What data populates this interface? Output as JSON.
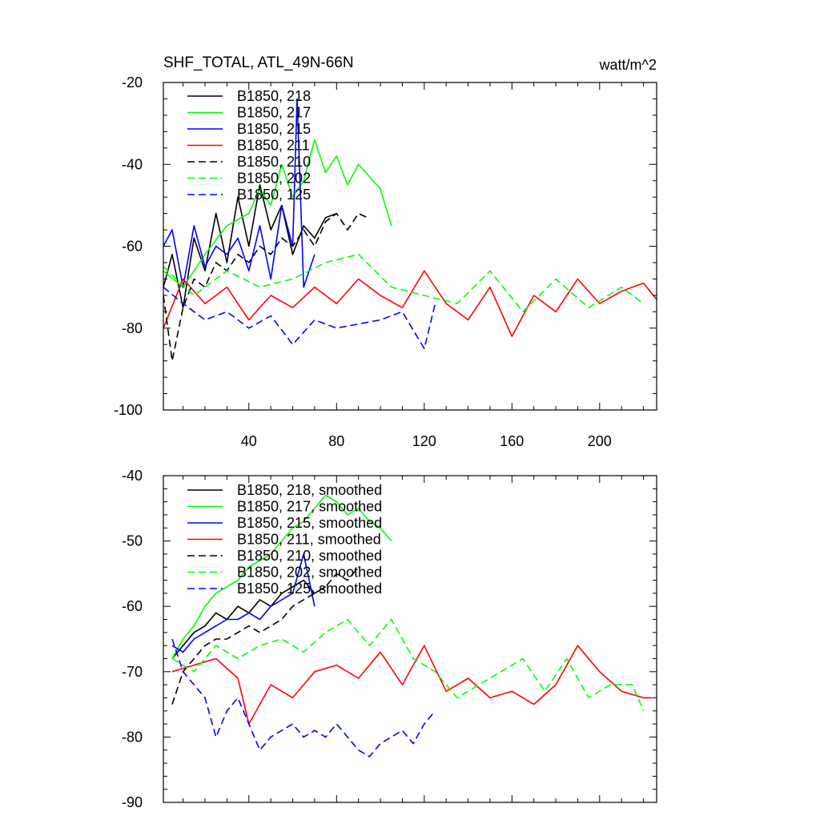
{
  "header": {
    "title": "SHF_TOTAL, ATL_49N-66N",
    "units": "watt/m^2"
  },
  "chart_data": [
    {
      "type": "line",
      "panel": "top",
      "xlim": [
        1,
        226
      ],
      "ylim": [
        -100,
        -20
      ],
      "x_ticks": [
        40,
        80,
        120,
        160,
        200
      ],
      "x_tick_labels": [
        "40",
        "80",
        "120",
        "160",
        "200"
      ],
      "y_ticks": [
        -20,
        -40,
        -60,
        -80,
        -100
      ],
      "y_tick_labels": [
        "-20",
        "-40",
        "-60",
        "-80",
        "-100"
      ],
      "grid": false,
      "legend_position": "top-left",
      "series": [
        {
          "name": "B1850, 218",
          "color": "#000000",
          "dash": "solid",
          "x": [
            1,
            5,
            10,
            15,
            20,
            25,
            30,
            35,
            40,
            45,
            50,
            55,
            60,
            65,
            70,
            75,
            80
          ],
          "y": [
            -70,
            -62,
            -75,
            -58,
            -66,
            -52,
            -64,
            -48,
            -60,
            -45,
            -56,
            -50,
            -62,
            -55,
            -58,
            -53,
            -52
          ]
        },
        {
          "name": "B1850, 217",
          "color": "#00ff00",
          "dash": "solid",
          "x": [
            1,
            10,
            20,
            30,
            40,
            45,
            50,
            55,
            60,
            65,
            70,
            75,
            80,
            85,
            90,
            95,
            100,
            105
          ],
          "y": [
            -66,
            -70,
            -62,
            -55,
            -52,
            -46,
            -50,
            -40,
            -48,
            -44,
            -34,
            -42,
            -38,
            -45,
            -40,
            -43,
            -46,
            -55
          ]
        },
        {
          "name": "B1850, 215",
          "color": "#0000ff",
          "dash": "solid",
          "x": [
            1,
            5,
            10,
            15,
            20,
            25,
            30,
            35,
            40,
            45,
            50,
            55,
            60,
            62,
            65,
            70
          ],
          "y": [
            -60,
            -56,
            -70,
            -55,
            -65,
            -60,
            -62,
            -58,
            -66,
            -55,
            -68,
            -50,
            -60,
            -24,
            -70,
            -62
          ]
        },
        {
          "name": "B1850, 211",
          "color": "#ff0000",
          "dash": "solid",
          "x": [
            1,
            10,
            20,
            30,
            40,
            50,
            60,
            70,
            80,
            90,
            100,
            110,
            120,
            130,
            140,
            150,
            160,
            170,
            180,
            190,
            200,
            210,
            220,
            226
          ],
          "y": [
            -80,
            -68,
            -74,
            -70,
            -78,
            -72,
            -75,
            -70,
            -74,
            -68,
            -72,
            -75,
            -66,
            -74,
            -78,
            -70,
            -82,
            -72,
            -76,
            -68,
            -74,
            -71,
            -69,
            -73
          ]
        },
        {
          "name": "B1850, 210",
          "color": "#000000",
          "dash": "dashed",
          "x": [
            1,
            5,
            10,
            15,
            20,
            25,
            30,
            35,
            40,
            45,
            50,
            55,
            60,
            65,
            70,
            75,
            80,
            85,
            90,
            94
          ],
          "y": [
            -72,
            -88,
            -75,
            -68,
            -70,
            -64,
            -66,
            -62,
            -64,
            -60,
            -62,
            -58,
            -60,
            -56,
            -60,
            -54,
            -52,
            -56,
            -52,
            -53
          ]
        },
        {
          "name": "B1850, 202",
          "color": "#00ff00",
          "dash": "dashed",
          "x": [
            1,
            15,
            30,
            45,
            60,
            75,
            90,
            105,
            120,
            135,
            150,
            165,
            180,
            195,
            210,
            220
          ],
          "y": [
            -65,
            -72,
            -66,
            -70,
            -68,
            -64,
            -62,
            -70,
            -72,
            -74,
            -66,
            -76,
            -68,
            -75,
            -70,
            -74
          ]
        },
        {
          "name": "B1850, 125",
          "color": "#0000ff",
          "dash": "dashed",
          "x": [
            1,
            10,
            20,
            30,
            40,
            50,
            60,
            70,
            80,
            90,
            100,
            110,
            120,
            125
          ],
          "y": [
            -70,
            -74,
            -78,
            -76,
            -80,
            -77,
            -84,
            -78,
            -80,
            -79,
            -78,
            -76,
            -85,
            -74
          ]
        }
      ]
    },
    {
      "type": "line",
      "panel": "bottom",
      "xlim": [
        1,
        226
      ],
      "ylim": [
        -90,
        -40
      ],
      "x_ticks": [
        40,
        80,
        120,
        160,
        200
      ],
      "y_ticks": [
        -40,
        -50,
        -60,
        -70,
        -80,
        -90
      ],
      "y_tick_labels": [
        "-40",
        "-50",
        "-60",
        "-70",
        "-80",
        "-90"
      ],
      "grid": false,
      "legend_position": "top-left",
      "series": [
        {
          "name": "B1850, 218, smoothed",
          "color": "#000000",
          "dash": "solid",
          "x": [
            5,
            10,
            15,
            20,
            25,
            30,
            35,
            40,
            45,
            50,
            55,
            60,
            65,
            70,
            75
          ],
          "y": [
            -68,
            -66,
            -64,
            -63,
            -61,
            -62,
            -60,
            -61,
            -59,
            -60,
            -58,
            -57,
            -56,
            -58,
            -57
          ]
        },
        {
          "name": "B1850, 217, smoothed",
          "color": "#00ff00",
          "dash": "solid",
          "x": [
            5,
            10,
            15,
            20,
            25,
            30,
            35,
            40,
            45,
            50,
            55,
            60,
            65,
            70,
            75,
            80,
            85,
            90,
            95,
            100,
            105
          ],
          "y": [
            -68,
            -65,
            -63,
            -60,
            -58,
            -57,
            -56,
            -54,
            -53,
            -52,
            -50,
            -48,
            -47,
            -45,
            -43,
            -44,
            -46,
            -45,
            -47,
            -48,
            -50
          ]
        },
        {
          "name": "B1850, 215, smoothed",
          "color": "#0000ff",
          "dash": "solid",
          "x": [
            5,
            10,
            15,
            20,
            25,
            30,
            35,
            40,
            45,
            50,
            55,
            60,
            65,
            70
          ],
          "y": [
            -66,
            -67,
            -65,
            -64,
            -63,
            -62,
            -62,
            -61,
            -62,
            -60,
            -59,
            -58,
            -52,
            -60
          ]
        },
        {
          "name": "B1850, 211, smoothed",
          "color": "#ff0000",
          "dash": "solid",
          "x": [
            5,
            15,
            25,
            35,
            40,
            50,
            60,
            70,
            80,
            90,
            100,
            110,
            120,
            130,
            140,
            150,
            160,
            170,
            180,
            190,
            200,
            210,
            220,
            224
          ],
          "y": [
            -70,
            -69,
            -68,
            -71,
            -78,
            -72,
            -74,
            -70,
            -69,
            -71,
            -67,
            -72,
            -66,
            -73,
            -71,
            -74,
            -73,
            -75,
            -72,
            -66,
            -70,
            -73,
            -74,
            -74
          ]
        },
        {
          "name": "B1850, 210, smoothed",
          "color": "#000000",
          "dash": "dashed",
          "x": [
            5,
            10,
            15,
            20,
            25,
            30,
            35,
            40,
            45,
            50,
            55,
            60,
            65,
            70,
            75,
            80,
            85,
            90
          ],
          "y": [
            -75,
            -70,
            -68,
            -66,
            -65,
            -65,
            -64,
            -63,
            -64,
            -63,
            -62,
            -60,
            -59,
            -58,
            -57,
            -55,
            -56,
            -54
          ]
        },
        {
          "name": "B1850, 202, smoothed",
          "color": "#00ff00",
          "dash": "dashed",
          "x": [
            5,
            15,
            25,
            35,
            45,
            55,
            65,
            75,
            85,
            95,
            105,
            115,
            125,
            135,
            145,
            155,
            165,
            175,
            185,
            195,
            205,
            215,
            220
          ],
          "y": [
            -68,
            -70,
            -66,
            -68,
            -66,
            -65,
            -67,
            -64,
            -62,
            -66,
            -62,
            -68,
            -70,
            -74,
            -72,
            -70,
            -68,
            -73,
            -68,
            -74,
            -72,
            -72,
            -76
          ]
        },
        {
          "name": "B1850, 125, smoothed",
          "color": "#0000ff",
          "dash": "dashed",
          "x": [
            5,
            10,
            15,
            20,
            25,
            30,
            35,
            40,
            45,
            50,
            55,
            60,
            65,
            70,
            75,
            80,
            85,
            90,
            95,
            100,
            105,
            110,
            115,
            120,
            125
          ],
          "y": [
            -65,
            -70,
            -72,
            -74,
            -80,
            -76,
            -74,
            -78,
            -82,
            -80,
            -79,
            -78,
            -80,
            -79,
            -80,
            -78,
            -80,
            -82,
            -83,
            -81,
            -80,
            -79,
            -81,
            -78,
            -76
          ]
        }
      ]
    }
  ]
}
